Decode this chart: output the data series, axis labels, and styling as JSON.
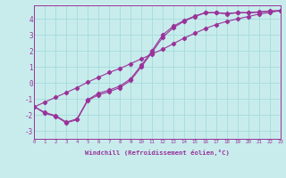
{
  "xlabel": "Windchill (Refroidissement éolien,°C)",
  "x_values": [
    0,
    1,
    2,
    3,
    4,
    5,
    6,
    7,
    8,
    9,
    10,
    11,
    12,
    13,
    14,
    15,
    16,
    17,
    18,
    19,
    20,
    21,
    22,
    23
  ],
  "line1": [
    -1.5,
    -1.9,
    -2.1,
    -2.5,
    -2.3,
    -1.1,
    -0.75,
    -0.55,
    -0.3,
    0.15,
    1.0,
    1.9,
    2.85,
    3.45,
    3.85,
    4.15,
    4.38,
    4.38,
    4.32,
    4.38,
    4.38,
    4.42,
    4.48,
    4.52
  ],
  "line2": [
    -1.5,
    -1.85,
    -2.05,
    -2.45,
    -2.25,
    -1.05,
    -0.65,
    -0.45,
    -0.2,
    0.25,
    1.1,
    2.0,
    3.0,
    3.55,
    3.9,
    4.18,
    4.4,
    4.4,
    4.34,
    4.4,
    4.4,
    4.44,
    4.5,
    4.52
  ],
  "line3": [
    -1.5,
    -1.2,
    -0.9,
    -0.6,
    -0.3,
    0.05,
    0.35,
    0.65,
    0.9,
    1.2,
    1.5,
    1.8,
    2.1,
    2.45,
    2.8,
    3.1,
    3.4,
    3.65,
    3.85,
    4.0,
    4.15,
    4.3,
    4.4,
    4.52
  ],
  "bg_color": "#c8ecec",
  "line_color": "#993399",
  "grid_color": "#aadddd",
  "ylim": [
    -3.5,
    4.85
  ],
  "xlim": [
    0,
    23
  ],
  "yticks": [
    -3,
    -2,
    -1,
    0,
    1,
    2,
    3,
    4
  ],
  "xticks": [
    0,
    1,
    2,
    3,
    4,
    5,
    6,
    7,
    8,
    9,
    10,
    11,
    12,
    13,
    14,
    15,
    16,
    17,
    18,
    19,
    20,
    21,
    22,
    23
  ]
}
